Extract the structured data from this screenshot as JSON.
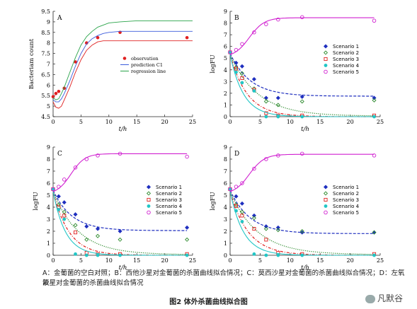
{
  "caption": {
    "line1": "A：金葡菌的空白对照；B：西他沙星对金葡菌的杀菌曲线拟合情况；C：莫西沙星对金葡菌的杀菌曲线拟合情况；D：左氧氟",
    "line2": "沙星对金葡菌的杀菌曲线拟合情况",
    "figure_title": "图2  体外杀菌曲线拟合图",
    "watermark": "凡默谷"
  },
  "colors": {
    "obs": "#e02020",
    "pred": "#3b5bdc",
    "reg": "#2aa44a",
    "s1": "#1f2fbf",
    "s2": "#2e8b2e",
    "s3": "#e02020",
    "s4": "#22c6c6",
    "s5": "#d020d0"
  },
  "chart_data": [
    {
      "panel": "A",
      "type": "line",
      "xlabel": "t/h",
      "ylabel": "Bacteriam count",
      "xlim": [
        0,
        25
      ],
      "ylim": [
        4.5,
        9.5
      ],
      "xticks": [
        0,
        5,
        10,
        15,
        20,
        25
      ],
      "yticks": [
        4.5,
        5,
        5.5,
        6,
        6.5,
        7,
        7.5,
        8,
        8.5,
        9,
        9.5
      ],
      "legend": [
        "observation",
        "prediction C1",
        "regression line"
      ],
      "legend_position": "middle-right",
      "series": [
        {
          "name": "observation",
          "style": "marker",
          "color": "obs",
          "x": [
            0,
            0.5,
            1,
            2,
            4,
            6,
            8,
            12,
            24
          ],
          "y": [
            5.45,
            5.6,
            5.7,
            5.85,
            7.1,
            8.0,
            8.25,
            8.5,
            8.25
          ]
        },
        {
          "name": "prediction C1",
          "style": "solid",
          "color": "pred",
          "x": [
            0,
            0.5,
            1,
            1.5,
            2,
            3,
            4,
            5,
            6,
            7,
            8,
            9,
            10,
            12,
            15,
            20,
            25
          ],
          "y": [
            5.3,
            5.2,
            5.2,
            5.35,
            5.6,
            6.2,
            6.9,
            7.5,
            7.95,
            8.2,
            8.35,
            8.45,
            8.5,
            8.55,
            8.55,
            8.55,
            8.55
          ]
        },
        {
          "name": "regression line",
          "style": "solid",
          "color": "reg",
          "x": [
            0,
            0.5,
            1,
            1.5,
            2,
            3,
            4,
            5,
            6,
            7,
            8,
            9,
            10,
            12,
            15,
            20,
            25
          ],
          "y": [
            5.4,
            5.3,
            5.35,
            5.6,
            5.9,
            6.6,
            7.3,
            7.9,
            8.3,
            8.55,
            8.75,
            8.85,
            8.95,
            9.0,
            9.05,
            9.05,
            9.05
          ]
        },
        {
          "name": "",
          "style": "solid",
          "color": "obs",
          "x": [
            0,
            0.5,
            1,
            1.5,
            2,
            3,
            4,
            5,
            6,
            7,
            8,
            9,
            10,
            12,
            15,
            20,
            25
          ],
          "y": [
            5.2,
            4.95,
            4.9,
            5.0,
            5.3,
            5.9,
            6.6,
            7.2,
            7.65,
            7.9,
            8.05,
            8.1,
            8.1,
            8.1,
            8.1,
            8.1,
            8.1
          ]
        }
      ]
    },
    {
      "panel": "B",
      "type": "line",
      "xlabel": "t/h",
      "ylabel": "logFU",
      "xlim": [
        0,
        25
      ],
      "ylim": [
        0,
        9
      ],
      "xticks": [
        0,
        5,
        10,
        15,
        20,
        25
      ],
      "yticks": [
        0,
        1,
        2,
        3,
        4,
        5,
        6,
        7,
        8,
        9
      ],
      "legend": [
        "Scenario 1",
        "Scenario 2",
        "Scenario 3",
        "Scenario 4",
        "Scenario 5"
      ],
      "legend_position": "middle-right",
      "series": [
        {
          "name": "Scenario 1",
          "color": "s1",
          "marker": "diamond",
          "line": "dashed",
          "obs_x": [
            0,
            1,
            2,
            4,
            6,
            8,
            12,
            24
          ],
          "obs_y": [
            5.5,
            4.6,
            4.3,
            3.2,
            1.6,
            1.6,
            1.7,
            1.6
          ],
          "fit": {
            "y0": 5.4,
            "yinf": 1.75,
            "k": 0.3
          }
        },
        {
          "name": "Scenario 2",
          "color": "s2",
          "marker": "diamond-open",
          "line": "dotted",
          "obs_x": [
            0,
            1,
            2,
            4,
            6,
            8,
            12,
            24
          ],
          "obs_y": [
            5.5,
            4.2,
            3.7,
            2.4,
            1.3,
            1.0,
            1.3,
            1.4
          ],
          "fit": {
            "y0": 5.3,
            "yinf": 0.05,
            "k": 0.22
          }
        },
        {
          "name": "Scenario 3",
          "color": "s3",
          "marker": "square-open",
          "line": "dashdot",
          "obs_x": [
            0,
            1,
            2,
            4,
            6,
            8,
            12,
            24
          ],
          "obs_y": [
            5.5,
            4.1,
            3.3,
            2.3,
            0.3,
            0.1,
            0.1,
            0.1
          ],
          "fit": {
            "y0": 5.3,
            "yinf": 0.0,
            "k": 0.35
          }
        },
        {
          "name": "Scenario 4",
          "color": "s4",
          "marker": "circle",
          "line": "solid",
          "obs_x": [
            0,
            1,
            2,
            4,
            6,
            8,
            12,
            24
          ],
          "obs_y": [
            5.5,
            3.8,
            2.9,
            2.2,
            0.0,
            0.0,
            0.0,
            0.0
          ],
          "fit": {
            "y0": 5.3,
            "yinf": 0.0,
            "k": 0.45
          }
        },
        {
          "name": "Scenario 5",
          "color": "s5",
          "marker": "circle-open",
          "line": "solid",
          "obs_x": [
            0,
            1,
            2,
            4,
            6,
            8,
            12,
            24
          ],
          "obs_y": [
            5.5,
            5.7,
            6.2,
            7.2,
            7.9,
            8.3,
            8.5,
            8.2
          ],
          "fit": {
            "y0": 5.3,
            "yinf": 8.45,
            "k": 0.0,
            "logistic": true
          }
        }
      ]
    },
    {
      "panel": "C",
      "type": "line",
      "xlabel": "t/h",
      "ylabel": "logFU",
      "xlim": [
        0,
        25
      ],
      "ylim": [
        0,
        9
      ],
      "xticks": [
        0,
        5,
        10,
        15,
        20,
        25
      ],
      "yticks": [
        0,
        1,
        2,
        3,
        4,
        5,
        6,
        7,
        8,
        9
      ],
      "legend": [
        "Scenario 1",
        "Scenario 2",
        "Scenario 3",
        "Scenario 4",
        "Scenario 5"
      ],
      "legend_position": "middle-right",
      "series": [
        {
          "name": "Scenario 1",
          "color": "s1",
          "marker": "diamond",
          "line": "dashed",
          "obs_x": [
            0,
            1,
            2,
            4,
            6,
            8,
            12,
            24
          ],
          "obs_y": [
            5.5,
            4.9,
            4.4,
            3.4,
            2.4,
            2.2,
            2.0,
            2.3
          ],
          "fit": {
            "y0": 5.4,
            "yinf": 2.05,
            "k": 0.3
          }
        },
        {
          "name": "Scenario 2",
          "color": "s2",
          "marker": "diamond-open",
          "line": "dotted",
          "obs_x": [
            0,
            1,
            2,
            4,
            6,
            8,
            12,
            24
          ],
          "obs_y": [
            5.5,
            4.2,
            3.6,
            2.5,
            1.3,
            1.6,
            1.3,
            1.3
          ],
          "fit": {
            "y0": 5.3,
            "yinf": 0.05,
            "k": 0.22
          }
        },
        {
          "name": "Scenario 3",
          "color": "s3",
          "marker": "square-open",
          "line": "dashdot",
          "obs_x": [
            0,
            1,
            2,
            4,
            6,
            8,
            12,
            24
          ],
          "obs_y": [
            5.5,
            4.0,
            3.3,
            1.9,
            0.2,
            0.1,
            0.1,
            0.1
          ],
          "fit": {
            "y0": 5.3,
            "yinf": 0.0,
            "k": 0.35
          }
        },
        {
          "name": "Scenario 4",
          "color": "s4",
          "marker": "circle",
          "line": "solid",
          "obs_x": [
            0,
            1,
            2,
            4,
            6,
            8,
            12,
            24
          ],
          "obs_y": [
            5.5,
            3.8,
            3.0,
            0.1,
            0.0,
            0.0,
            0.0,
            0.0
          ],
          "fit": {
            "y0": 5.3,
            "yinf": 0.0,
            "k": 0.45
          }
        },
        {
          "name": "Scenario 5",
          "color": "s5",
          "marker": "circle-open",
          "line": "solid",
          "obs_x": [
            0,
            1,
            2,
            4,
            6,
            8,
            12,
            24
          ],
          "obs_y": [
            5.5,
            5.7,
            6.3,
            7.3,
            8.0,
            8.3,
            8.45,
            8.2
          ],
          "fit": {
            "y0": 5.3,
            "yinf": 8.45,
            "k": 0.0,
            "logistic": true
          }
        }
      ]
    },
    {
      "panel": "D",
      "type": "line",
      "xlabel": "t/h",
      "ylabel": "logFU",
      "xlim": [
        0,
        25
      ],
      "ylim": [
        0,
        9
      ],
      "xticks": [
        0,
        5,
        10,
        15,
        20,
        25
      ],
      "yticks": [
        0,
        1,
        2,
        3,
        4,
        5,
        6,
        7,
        8,
        9
      ],
      "legend": [
        "Scenario 1",
        "Scenario 2",
        "Scenario 3",
        "Scenario 4",
        "Scenario 5"
      ],
      "legend_position": "middle-right",
      "series": [
        {
          "name": "Scenario 1",
          "color": "s1",
          "marker": "diamond",
          "line": "dashed",
          "obs_x": [
            0,
            1,
            2,
            4,
            6,
            8,
            12,
            24
          ],
          "obs_y": [
            5.5,
            4.9,
            4.3,
            3.3,
            2.4,
            2.3,
            1.9,
            1.9
          ],
          "fit": {
            "y0": 5.4,
            "yinf": 1.8,
            "k": 0.3
          }
        },
        {
          "name": "Scenario 2",
          "color": "s2",
          "marker": "diamond-open",
          "line": "dotted",
          "obs_x": [
            0,
            1,
            2,
            4,
            6,
            8,
            12,
            24
          ],
          "obs_y": [
            5.5,
            4.2,
            3.6,
            3.1,
            2.2,
            2.1,
            2.0,
            1.9
          ],
          "fit": {
            "y0": 5.3,
            "yinf": 0.05,
            "k": 0.22
          }
        },
        {
          "name": "Scenario 3",
          "color": "s3",
          "marker": "square-open",
          "line": "dashdot",
          "obs_x": [
            0,
            1,
            2,
            4,
            6,
            8,
            12,
            24
          ],
          "obs_y": [
            5.5,
            4.1,
            3.3,
            2.2,
            1.3,
            0.2,
            0.1,
            0.1
          ],
          "fit": {
            "y0": 5.3,
            "yinf": 0.0,
            "k": 0.33
          }
        },
        {
          "name": "Scenario 4",
          "color": "s4",
          "marker": "circle",
          "line": "solid",
          "obs_x": [
            0,
            1,
            2,
            4,
            6,
            8,
            12,
            24
          ],
          "obs_y": [
            5.5,
            3.7,
            2.8,
            0.1,
            0.0,
            0.0,
            0.0,
            0.0
          ],
          "fit": {
            "y0": 5.3,
            "yinf": 0.0,
            "k": 0.45
          }
        },
        {
          "name": "Scenario 5",
          "color": "s5",
          "marker": "circle-open",
          "line": "solid",
          "obs_x": [
            0,
            1,
            2,
            4,
            6,
            8,
            12,
            24
          ],
          "obs_y": [
            5.5,
            5.7,
            6.0,
            7.2,
            8.0,
            8.3,
            8.45,
            8.3
          ],
          "fit": {
            "y0": 5.3,
            "yinf": 8.4,
            "k": 0.0,
            "logistic": true
          }
        }
      ]
    }
  ]
}
